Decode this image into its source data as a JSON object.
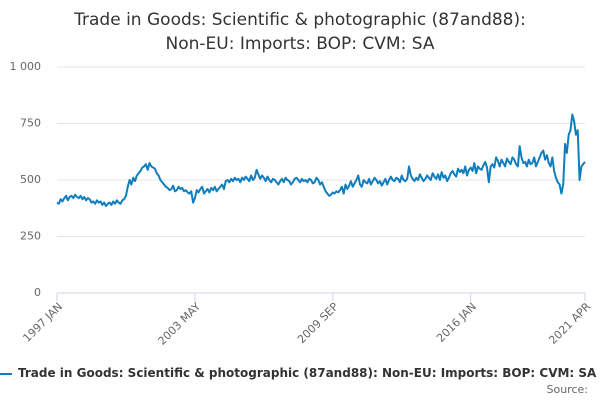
{
  "chart_data": {
    "type": "line",
    "title": "Trade in Goods: Scientific & photographic (87and88): Non-EU: Imports: BOP: CVM: SA",
    "source": "Source:",
    "categories": [
      "1997 JAN",
      null,
      null,
      null,
      null,
      null,
      null,
      null,
      null,
      null,
      null,
      null,
      null,
      null,
      null,
      null,
      null,
      null,
      null,
      null,
      null,
      null,
      null,
      null,
      null,
      null,
      null,
      null,
      null,
      null,
      null,
      null,
      null,
      null,
      null,
      null,
      null,
      null,
      null,
      null,
      null,
      null,
      null,
      null,
      null,
      null,
      null,
      null,
      null,
      null,
      null,
      null,
      null,
      null,
      null,
      null,
      null,
      null,
      null,
      null,
      null,
      null,
      null,
      null,
      null,
      null,
      null,
      null,
      null,
      null,
      null,
      null,
      null,
      null,
      null,
      null,
      "2003 MAY",
      null,
      null,
      null,
      null,
      null,
      null,
      null,
      null,
      null,
      null,
      null,
      null,
      null,
      null,
      null,
      null,
      null,
      null,
      null,
      null,
      null,
      null,
      null,
      null,
      null,
      null,
      null,
      null,
      null,
      null,
      null,
      null,
      null,
      null,
      null,
      null,
      null,
      null,
      null,
      null,
      null,
      null,
      null,
      null,
      null,
      null,
      null,
      null,
      null,
      null,
      null,
      null,
      null,
      null,
      null,
      null,
      null,
      null,
      null,
      null,
      null,
      null,
      null,
      null,
      null,
      null,
      null,
      null,
      null,
      null,
      null,
      null,
      null,
      null,
      null,
      "2009 SEP",
      null,
      null,
      null,
      null,
      null,
      null,
      null,
      null,
      null,
      null,
      null,
      null,
      null,
      null,
      null,
      null,
      null,
      null,
      null,
      null,
      null,
      null,
      null,
      null,
      null,
      null,
      null,
      null,
      null,
      null,
      null,
      null,
      null,
      null,
      null,
      null,
      null,
      null,
      null,
      null,
      null,
      null,
      null,
      null,
      null,
      null,
      null,
      null,
      null,
      null,
      null,
      null,
      null,
      null,
      null,
      null,
      null,
      null,
      null,
      null,
      null,
      null,
      null,
      null,
      null,
      null,
      null,
      null,
      null,
      null,
      null,
      null,
      null,
      null,
      null,
      "2016 JAN",
      null,
      null,
      null,
      null,
      null,
      null,
      null,
      null,
      null,
      null,
      null,
      null,
      null,
      null,
      null,
      null,
      null,
      null,
      null,
      null,
      null,
      null,
      null,
      null,
      null,
      null,
      null,
      null,
      null,
      null,
      null,
      null,
      null,
      null,
      null,
      null,
      null,
      null,
      null,
      null,
      null,
      null,
      null,
      null,
      null,
      null,
      null,
      null,
      null,
      null,
      null,
      null,
      null,
      null,
      null,
      null,
      null,
      null,
      null,
      null,
      null,
      null,
      "2021 APR"
    ],
    "series": [
      {
        "name": "Trade in Goods: Scientific & photographic (87and88): Non-EU: Imports: BOP: CVM: SA",
        "color": "#0f7dbe",
        "values": [
          400,
          395,
          415,
          405,
          420,
          430,
          410,
          425,
          430,
          420,
          435,
          425,
          420,
          430,
          415,
          425,
          410,
          420,
          415,
          400,
          405,
          395,
          410,
          400,
          405,
          390,
          400,
          385,
          395,
          400,
          390,
          405,
          395,
          410,
          400,
          395,
          410,
          415,
          430,
          470,
          500,
          480,
          510,
          495,
          520,
          530,
          540,
          555,
          560,
          570,
          545,
          575,
          560,
          555,
          550,
          530,
          520,
          500,
          490,
          480,
          470,
          465,
          455,
          460,
          475,
          450,
          455,
          470,
          460,
          465,
          450,
          455,
          445,
          440,
          450,
          400,
          420,
          455,
          445,
          460,
          470,
          440,
          450,
          460,
          445,
          465,
          455,
          470,
          450,
          460,
          470,
          480,
          460,
          495,
          500,
          490,
          505,
          495,
          510,
          500,
          505,
          490,
          510,
          500,
          515,
          505,
          495,
          520,
          500,
          510,
          545,
          525,
          505,
          520,
          510,
          495,
          515,
          500,
          490,
          505,
          500,
          490,
          480,
          495,
          505,
          490,
          510,
          500,
          495,
          480,
          490,
          505,
          510,
          500,
          490,
          505,
          495,
          500,
          490,
          505,
          500,
          485,
          490,
          510,
          500,
          480,
          490,
          470,
          450,
          440,
          430,
          435,
          445,
          440,
          450,
          445,
          455,
          470,
          440,
          480,
          460,
          475,
          495,
          470,
          485,
          500,
          520,
          480,
          470,
          500,
          490,
          485,
          505,
          480,
          495,
          510,
          500,
          485,
          495,
          475,
          490,
          505,
          480,
          500,
          515,
          500,
          495,
          510,
          505,
          490,
          520,
          500,
          495,
          505,
          560,
          520,
          505,
          495,
          510,
          500,
          525,
          510,
          495,
          505,
          520,
          510,
          500,
          530,
          515,
          505,
          525,
          500,
          535,
          510,
          520,
          495,
          510,
          530,
          540,
          525,
          515,
          550,
          535,
          545,
          530,
          560,
          520,
          545,
          555,
          540,
          575,
          530,
          560,
          550,
          545,
          565,
          580,
          555,
          490,
          560,
          570,
          555,
          600,
          585,
          560,
          590,
          575,
          560,
          595,
          580,
          570,
          600,
          590,
          570,
          560,
          650,
          600,
          575,
          580,
          560,
          590,
          570,
          575,
          600,
          560,
          580,
          600,
          620,
          630,
          590,
          610,
          575,
          560,
          600,
          540,
          510,
          490,
          480,
          440,
          480,
          660,
          620,
          700,
          720,
          790,
          760,
          700,
          720,
          500,
          560,
          570,
          580
        ]
      }
    ],
    "ylim": [
      0,
      1000
    ],
    "yticks": [
      0,
      250,
      500,
      750,
      {
        "value": 1000,
        "label": "1 000"
      }
    ],
    "grid": true
  }
}
